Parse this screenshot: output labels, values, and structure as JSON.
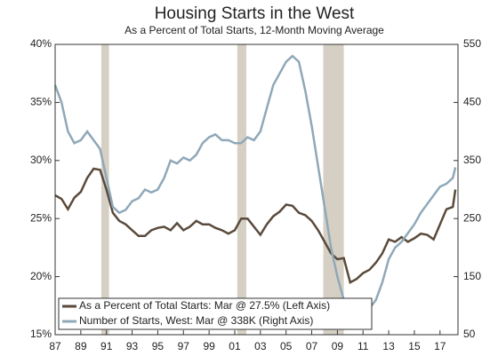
{
  "chart_data": {
    "type": "line",
    "title": "Housing Starts in the West",
    "subtitle": "As a Percent of Total Starts, 12-Month Moving Average",
    "x": [
      1987.0,
      1987.5,
      1988.0,
      1988.5,
      1989.0,
      1989.5,
      1990.0,
      1990.5,
      1991.0,
      1991.5,
      1992.0,
      1992.5,
      1993.0,
      1993.5,
      1994.0,
      1994.5,
      1995.0,
      1995.5,
      1996.0,
      1996.5,
      1997.0,
      1997.5,
      1998.0,
      1998.5,
      1999.0,
      1999.5,
      2000.0,
      2000.5,
      2001.0,
      2001.5,
      2002.0,
      2002.5,
      2003.0,
      2003.5,
      2004.0,
      2004.5,
      2005.0,
      2005.5,
      2006.0,
      2006.5,
      2007.0,
      2007.5,
      2008.0,
      2008.5,
      2009.0,
      2009.5,
      2010.0,
      2010.5,
      2011.0,
      2011.5,
      2012.0,
      2012.5,
      2013.0,
      2013.5,
      2014.0,
      2014.5,
      2015.0,
      2015.5,
      2016.0,
      2016.5,
      2017.0,
      2017.5,
      2018.0,
      2018.2
    ],
    "series": [
      {
        "name": "As a Percent of Total Starts: Mar @ 27.5% (Left Axis)",
        "color": "#5a4a3c",
        "axis": "y",
        "values": [
          27.0,
          26.7,
          25.8,
          26.8,
          27.3,
          28.5,
          29.3,
          29.2,
          27.5,
          25.5,
          24.8,
          24.5,
          24.0,
          23.5,
          23.5,
          24.0,
          24.2,
          24.3,
          24.0,
          24.6,
          24.0,
          24.3,
          24.8,
          24.5,
          24.5,
          24.2,
          24.0,
          23.7,
          24.0,
          25.0,
          25.0,
          24.3,
          23.6,
          24.5,
          25.2,
          25.6,
          26.2,
          26.1,
          25.5,
          25.3,
          24.8,
          24.0,
          23.0,
          22.0,
          21.5,
          21.6,
          19.5,
          19.8,
          20.3,
          20.6,
          21.2,
          22.0,
          23.2,
          23.0,
          23.4,
          23.0,
          23.3,
          23.7,
          23.6,
          23.2,
          24.5,
          25.8,
          26.0,
          27.5
        ]
      },
      {
        "name": "Number of Starts, West: Mar @ 338K (Right Axis)",
        "color": "#8fa8b8",
        "axis": "y2",
        "values": [
          480,
          450,
          400,
          380,
          385,
          400,
          385,
          370,
          320,
          270,
          260,
          265,
          280,
          285,
          300,
          295,
          300,
          320,
          350,
          345,
          355,
          350,
          360,
          380,
          390,
          395,
          385,
          385,
          380,
          380,
          390,
          385,
          400,
          440,
          480,
          500,
          520,
          530,
          520,
          470,
          410,
          340,
          270,
          200,
          150,
          110,
          95,
          95,
          90,
          95,
          110,
          140,
          180,
          200,
          210,
          225,
          240,
          260,
          275,
          290,
          305,
          310,
          320,
          338
        ]
      }
    ],
    "recessions": [
      [
        1990.6,
        1991.2
      ],
      [
        2001.2,
        2001.9
      ],
      [
        2007.9,
        2009.5
      ]
    ],
    "recession_color": "#d6d0c4",
    "xlim": [
      1987,
      2018.4
    ],
    "xticks": [
      {
        "value": 1987,
        "label": "87"
      },
      {
        "value": 1989,
        "label": "89"
      },
      {
        "value": 1991,
        "label": "91"
      },
      {
        "value": 1993,
        "label": "93"
      },
      {
        "value": 1995,
        "label": "95"
      },
      {
        "value": 1997,
        "label": "97"
      },
      {
        "value": 1999,
        "label": "99"
      },
      {
        "value": 2001,
        "label": "01"
      },
      {
        "value": 2003,
        "label": "03"
      },
      {
        "value": 2005,
        "label": "05"
      },
      {
        "value": 2007,
        "label": "07"
      },
      {
        "value": 2009,
        "label": "09"
      },
      {
        "value": 2011,
        "label": "11"
      },
      {
        "value": 2013,
        "label": "13"
      },
      {
        "value": 2015,
        "label": "15"
      },
      {
        "value": 2017,
        "label": "17"
      }
    ],
    "ylim": [
      15,
      40
    ],
    "yticks": [
      {
        "value": 15,
        "label": "15%"
      },
      {
        "value": 20,
        "label": "20%"
      },
      {
        "value": 25,
        "label": "25%"
      },
      {
        "value": 30,
        "label": "30%"
      },
      {
        "value": 35,
        "label": "35%"
      },
      {
        "value": 40,
        "label": "40%"
      }
    ],
    "y2lim": [
      50,
      550
    ],
    "y2ticks": [
      50,
      150,
      250,
      350,
      450,
      550
    ],
    "legend": "lower left"
  }
}
